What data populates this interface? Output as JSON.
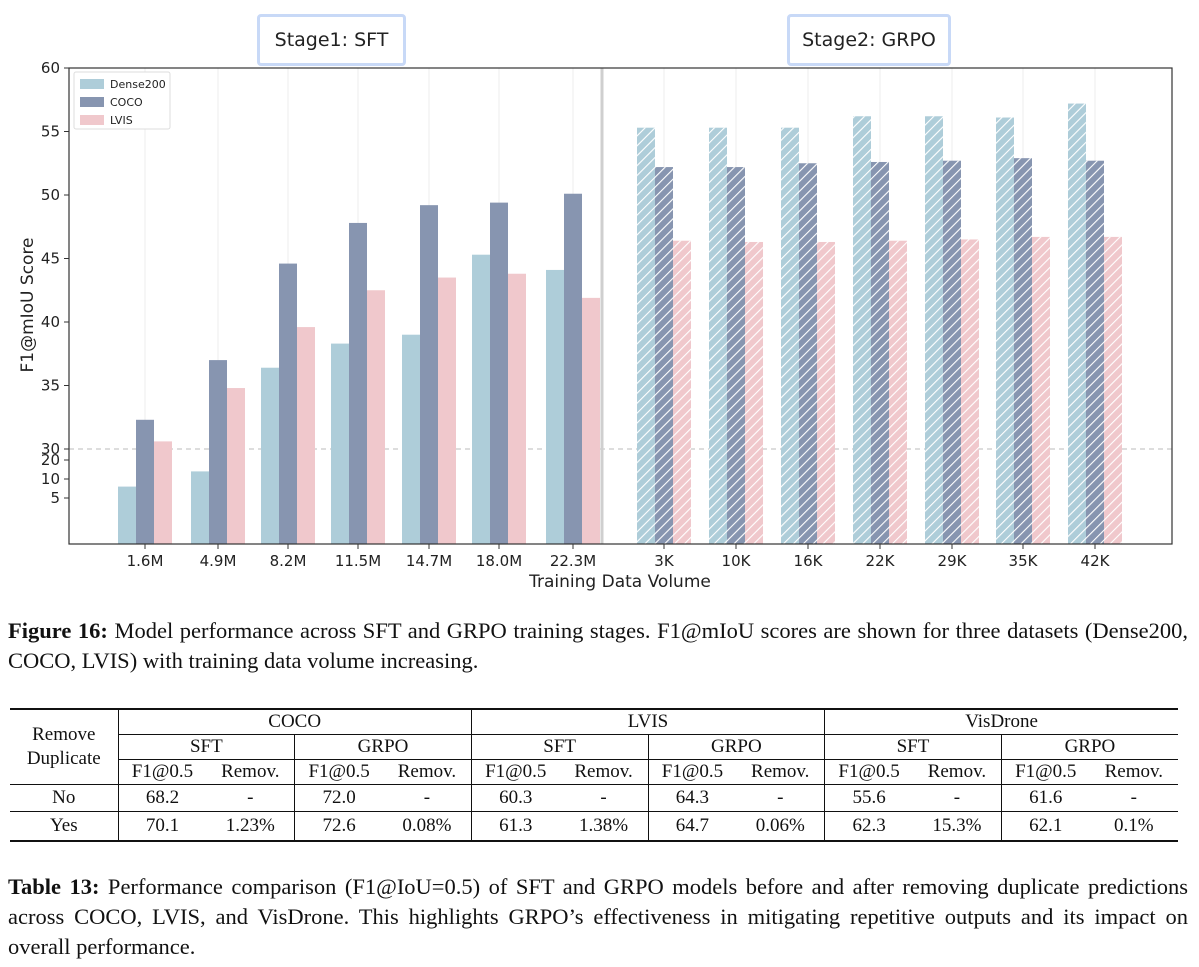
{
  "figure": {
    "stage1_label": "Stage1: SFT",
    "stage2_label": "Stage2: GRPO",
    "caption_label": "Figure 16:",
    "caption_text": " Model performance across SFT and GRPO training stages. F1@mIoU scores are shown for three datasets (Dense200, COCO, LVIS) with training data volume increasing."
  },
  "chart_data": {
    "type": "bar",
    "title": "",
    "xlabel": "Training Data Volume",
    "ylabel": "F1@mIoU Score",
    "categories": [
      "1.6M",
      "4.9M",
      "8.2M",
      "11.5M",
      "14.7M",
      "18.0M",
      "22.3M",
      "3K",
      "10K",
      "16K",
      "22K",
      "29K",
      "35K",
      "42K"
    ],
    "stage_split_after_index": 6,
    "y_ticks_upper": [
      30,
      35,
      40,
      45,
      50,
      55,
      60
    ],
    "y_ticks_lower": [
      5,
      10,
      20
    ],
    "y_axis_break": "scale changes below 30",
    "reference_line": 30,
    "legend_position": "top-left",
    "grid": "vertical",
    "series": [
      {
        "name": "Dense200",
        "color": "#aecdd9",
        "values": [
          8,
          14,
          36.4,
          38.3,
          39.0,
          45.3,
          44.1,
          55.3,
          55.3,
          55.3,
          56.2,
          56.2,
          56.1,
          57.2
        ]
      },
      {
        "name": "COCO",
        "color": "#8795b0",
        "values": [
          32.3,
          37.0,
          44.6,
          47.8,
          49.2,
          49.4,
          50.1,
          52.2,
          52.2,
          52.5,
          52.6,
          52.7,
          52.9,
          52.7
        ]
      },
      {
        "name": "LVIS",
        "color": "#f0c8cc",
        "values": [
          30.6,
          34.8,
          39.6,
          42.5,
          43.5,
          43.8,
          41.9,
          46.4,
          46.3,
          46.3,
          46.4,
          46.5,
          46.7,
          46.7
        ]
      }
    ],
    "hatched_categories_from_index": 7
  },
  "table": {
    "caption_label": "Table 13:",
    "caption_text": " Performance comparison (F1@IoU=0.5) of SFT and GRPO models before and after removing duplicate predictions across COCO, LVIS, and VisDrone. This highlights GRPO’s effectiveness in mitigating repetitive outputs and its impact on overall performance.",
    "row_header": [
      "Remove",
      "Duplicate"
    ],
    "datasets": [
      "COCO",
      "LVIS",
      "VisDrone"
    ],
    "methods": [
      "SFT",
      "GRPO",
      "SFT",
      "GRPO",
      "SFT",
      "GRPO"
    ],
    "metrics": [
      "F1@0.5",
      "Remov.",
      "F1@0.5",
      "Remov.",
      "F1@0.5",
      "Remov.",
      "F1@0.5",
      "Remov.",
      "F1@0.5",
      "Remov.",
      "F1@0.5",
      "Remov."
    ],
    "rows": [
      {
        "label": "No",
        "cells": [
          "68.2",
          "-",
          "72.0",
          "-",
          "60.3",
          "-",
          "64.3",
          "-",
          "55.6",
          "-",
          "61.6",
          "-"
        ]
      },
      {
        "label": "Yes",
        "cells": [
          "70.1",
          "1.23%",
          "72.6",
          "0.08%",
          "61.3",
          "1.38%",
          "64.7",
          "0.06%",
          "62.3",
          "15.3%",
          "62.1",
          "0.1%"
        ]
      }
    ]
  }
}
